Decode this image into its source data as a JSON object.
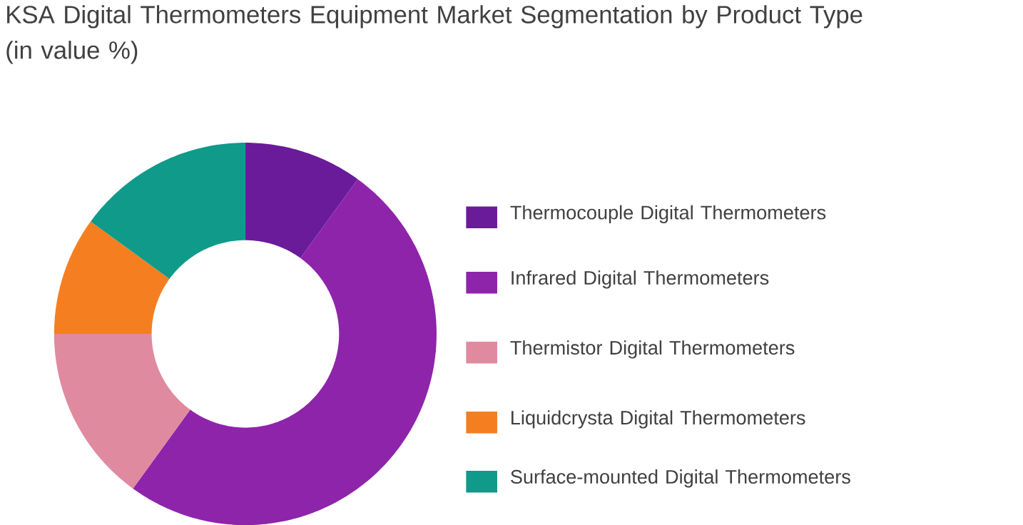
{
  "chart_data": {
    "type": "donut",
    "title": "KSA Digital Thermometers Equipment Market Segmentation by Product Type (in value %)",
    "categories": [
      "Thermocouple Digital Thermometers",
      "Infrared Digital Thermometers",
      "Thermistor Digital Thermometers",
      "Liquidcrysta Digital Thermometers",
      "Surface-mounted Digital Thermometers"
    ],
    "values": [
      10,
      50,
      15,
      10,
      15
    ],
    "colors": [
      "#6a1b9a",
      "#8e24aa",
      "#e08aa0",
      "#f57f20",
      "#0f9a8a"
    ],
    "legend": "right"
  }
}
